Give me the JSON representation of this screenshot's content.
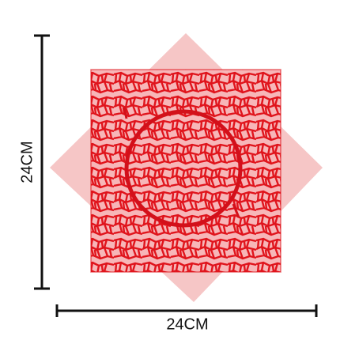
{
  "dimensions": {
    "height_label": "24CM",
    "width_label": "24CM"
  }
}
